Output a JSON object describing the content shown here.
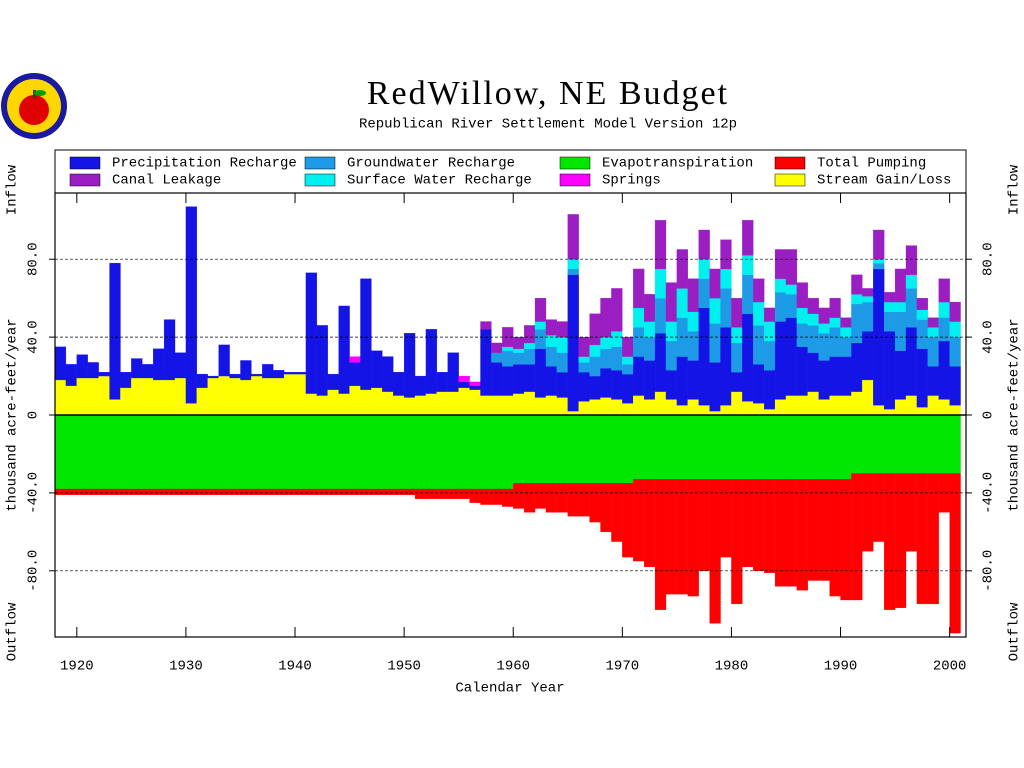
{
  "chart_data": {
    "type": "stacked-step-bar",
    "title": "RedWillow, NE Budget",
    "subtitle": "Republican River Settlement Model Version 12p",
    "xlabel": "Calendar Year",
    "ylabel_top": "Inflow",
    "ylabel_mid": "thousand acre-feet/year",
    "ylabel_bottom": "Outflow",
    "xlim": [
      1918,
      2001.5
    ],
    "xticks": [
      1920,
      1930,
      1940,
      1950,
      1960,
      1970,
      1980,
      1990,
      2000
    ],
    "ylim": [
      -114,
      114
    ],
    "yticks": [
      {
        "value": -80,
        "label": "-80.0"
      },
      {
        "value": -40,
        "label": "-40.0"
      },
      0,
      {
        "value": 40,
        "label": "40.0"
      },
      {
        "value": 80,
        "label": "80.0"
      }
    ],
    "grid": true,
    "x": [
      1918,
      1919,
      1920,
      1921,
      1922,
      1923,
      1924,
      1925,
      1926,
      1927,
      1928,
      1929,
      1930,
      1931,
      1932,
      1933,
      1934,
      1935,
      1936,
      1937,
      1938,
      1939,
      1940,
      1941,
      1942,
      1943,
      1944,
      1945,
      1946,
      1947,
      1948,
      1949,
      1950,
      1951,
      1952,
      1953,
      1954,
      1955,
      1956,
      1957,
      1958,
      1959,
      1960,
      1961,
      1962,
      1963,
      1964,
      1965,
      1966,
      1967,
      1968,
      1969,
      1970,
      1971,
      1972,
      1973,
      1974,
      1975,
      1976,
      1977,
      1978,
      1979,
      1980,
      1981,
      1982,
      1983,
      1984,
      1985,
      1986,
      1987,
      1988,
      1989,
      1990,
      1991,
      1992,
      1993,
      1994,
      1995,
      1996,
      1997,
      1998,
      1999,
      2000
    ],
    "series": [
      {
        "name": "Precipitation Recharge",
        "color": "#1414e6",
        "values": [
          17,
          11,
          12,
          8,
          2,
          70,
          8,
          10,
          7,
          16,
          31,
          13,
          101,
          7,
          1,
          16,
          2,
          10,
          1,
          7,
          4,
          1,
          1,
          62,
          36,
          8,
          45,
          12,
          57,
          19,
          18,
          12,
          33,
          10,
          33,
          10,
          20,
          3,
          2,
          34,
          17,
          15,
          15,
          14,
          25,
          15,
          13,
          70,
          15,
          12,
          15,
          15,
          15,
          20,
          20,
          30,
          15,
          25,
          20,
          50,
          25,
          40,
          10,
          45,
          20,
          20,
          40,
          40,
          25,
          20,
          20,
          20,
          20,
          25,
          25,
          70,
          40,
          25,
          35,
          30,
          15,
          30,
          20
        ]
      },
      {
        "name": "Canal Leakage",
        "color": "#9a1ec2",
        "values": [
          0,
          0,
          0,
          0,
          0,
          0,
          0,
          0,
          0,
          0,
          0,
          0,
          0,
          0,
          0,
          0,
          0,
          0,
          0,
          0,
          0,
          0,
          0,
          0,
          0,
          0,
          0,
          0,
          0,
          0,
          0,
          0,
          0,
          0,
          0,
          0,
          0,
          0,
          0,
          4,
          5,
          10,
          6,
          9,
          12,
          8,
          8,
          23,
          10,
          16,
          20,
          22,
          10,
          20,
          14,
          25,
          20,
          20,
          17,
          15,
          15,
          15,
          15,
          18,
          12,
          7,
          15,
          18,
          13,
          8,
          8,
          10,
          5,
          10,
          4,
          15,
          5,
          17,
          15,
          6,
          5,
          12,
          10
        ]
      },
      {
        "name": "Groundwater Recharge",
        "color": "#1e9be6",
        "values": [
          0,
          0,
          0,
          0,
          0,
          0,
          0,
          0,
          0,
          0,
          0,
          0,
          0,
          0,
          0,
          0,
          0,
          0,
          0,
          0,
          0,
          0,
          0,
          0,
          0,
          0,
          0,
          0,
          0,
          0,
          0,
          0,
          0,
          0,
          0,
          0,
          0,
          0,
          0,
          0,
          5,
          8,
          6,
          8,
          10,
          10,
          10,
          3,
          5,
          10,
          10,
          12,
          5,
          15,
          12,
          18,
          15,
          20,
          15,
          15,
          20,
          20,
          15,
          20,
          20,
          15,
          15,
          12,
          12,
          14,
          14,
          15,
          10,
          20,
          15,
          3,
          10,
          20,
          20,
          15,
          15,
          12,
          15
        ]
      },
      {
        "name": "Surface Water Recharge",
        "color": "#00f0f0",
        "values": [
          0,
          0,
          0,
          0,
          0,
          0,
          0,
          0,
          0,
          0,
          0,
          0,
          0,
          0,
          0,
          0,
          0,
          0,
          0,
          0,
          0,
          0,
          0,
          0,
          0,
          0,
          0,
          0,
          0,
          0,
          0,
          0,
          0,
          0,
          0,
          0,
          0,
          0,
          0,
          0,
          0,
          2,
          2,
          3,
          4,
          6,
          8,
          5,
          3,
          6,
          6,
          8,
          4,
          10,
          8,
          15,
          10,
          15,
          10,
          10,
          13,
          10,
          8,
          10,
          12,
          10,
          7,
          5,
          8,
          6,
          5,
          5,
          5,
          5,
          3,
          2,
          5,
          5,
          7,
          5,
          5,
          8,
          8
        ]
      },
      {
        "name": "Evapotranspiration",
        "color": "#00e600",
        "values": [
          -38,
          -38,
          -38,
          -38,
          -38,
          -38,
          -38,
          -38,
          -38,
          -38,
          -38,
          -38,
          -38,
          -38,
          -38,
          -38,
          -38,
          -38,
          -38,
          -38,
          -38,
          -38,
          -38,
          -38,
          -38,
          -38,
          -38,
          -38,
          -38,
          -38,
          -38,
          -38,
          -38,
          -38,
          -38,
          -38,
          -38,
          -38,
          -38,
          -38,
          -38,
          -38,
          -35,
          -35,
          -35,
          -35,
          -35,
          -35,
          -35,
          -35,
          -35,
          -35,
          -35,
          -33,
          -33,
          -33,
          -33,
          -33,
          -33,
          -33,
          -33,
          -33,
          -33,
          -33,
          -33,
          -33,
          -33,
          -33,
          -33,
          -33,
          -33,
          -33,
          -33,
          -30,
          -30,
          -30,
          -30,
          -30,
          -30,
          -30,
          -30,
          -30,
          -30
        ]
      },
      {
        "name": "Springs",
        "color": "#ff00ff",
        "values": [
          0,
          0,
          0,
          0,
          0,
          0,
          0,
          0,
          0,
          0,
          0,
          0,
          0,
          0,
          0,
          0,
          0,
          0,
          0,
          0,
          0,
          0,
          0,
          0,
          0,
          0,
          0,
          3,
          0,
          0,
          0,
          0,
          0,
          0,
          0,
          0,
          0,
          3,
          2,
          0,
          0,
          0,
          0,
          0,
          0,
          0,
          0,
          0,
          0,
          0,
          0,
          0,
          0,
          0,
          0,
          0,
          0,
          0,
          0,
          0,
          0,
          0,
          0,
          0,
          0,
          0,
          0,
          0,
          0,
          0,
          0,
          0,
          0,
          0,
          0,
          0,
          0,
          0,
          0,
          0,
          0,
          0,
          0
        ]
      },
      {
        "name": "Total Pumping",
        "color": "#ff0000",
        "values": [
          -3,
          -3,
          -3,
          -3,
          -3,
          -3,
          -3,
          -3,
          -3,
          -3,
          -3,
          -3,
          -3,
          -3,
          -3,
          -3,
          -3,
          -3,
          -3,
          -3,
          -3,
          -3,
          -3,
          -3,
          -3,
          -3,
          -3,
          -3,
          -3,
          -3,
          -3,
          -3,
          -3,
          -5,
          -5,
          -5,
          -5,
          -5,
          -7,
          -8,
          -8,
          -9,
          -13,
          -15,
          -13,
          -15,
          -15,
          -17,
          -17,
          -20,
          -25,
          -30,
          -38,
          -42,
          -45,
          -67,
          -59,
          -59,
          -60,
          -47,
          -74,
          -40,
          -64,
          -45,
          -47,
          -48,
          -55,
          -55,
          -57,
          -52,
          -52,
          -60,
          -62,
          -65,
          -40,
          -35,
          -70,
          -69,
          -40,
          -67,
          -67,
          -20,
          -82
        ]
      },
      {
        "name": "Stream Gain/Loss",
        "color": "#ffff00",
        "values": [
          18,
          15,
          19,
          19,
          20,
          8,
          14,
          19,
          19,
          18,
          18,
          19,
          6,
          14,
          19,
          20,
          19,
          18,
          20,
          19,
          19,
          21,
          21,
          11,
          10,
          13,
          11,
          15,
          13,
          14,
          12,
          10,
          9,
          10,
          11,
          12,
          12,
          14,
          13,
          10,
          10,
          10,
          11,
          12,
          9,
          10,
          9,
          2,
          7,
          8,
          9,
          8,
          6,
          10,
          8,
          12,
          8,
          5,
          8,
          5,
          2,
          5,
          12,
          7,
          6,
          3,
          8,
          10,
          10,
          12,
          8,
          10,
          10,
          12,
          18,
          5,
          3,
          8,
          10,
          4,
          10,
          8,
          5
        ]
      }
    ]
  }
}
